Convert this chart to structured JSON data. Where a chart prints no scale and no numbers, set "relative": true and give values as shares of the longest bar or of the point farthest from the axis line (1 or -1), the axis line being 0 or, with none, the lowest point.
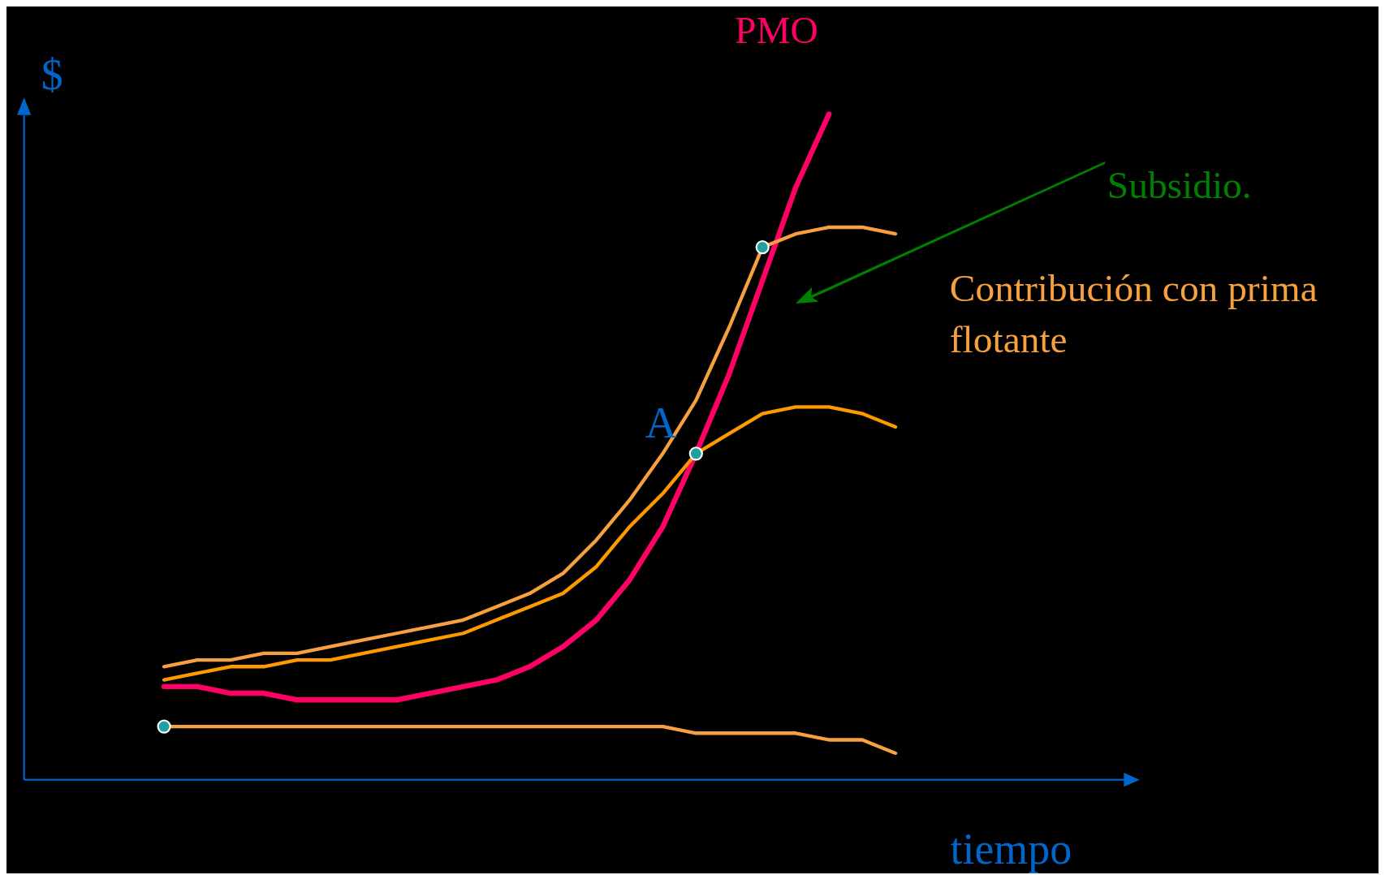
{
  "chart_data": {
    "type": "line",
    "relative": true,
    "xlabel": "tiempo",
    "ylabel": "$",
    "categories": [
      null,
      null,
      null,
      null,
      null,
      null,
      null,
      null,
      null,
      null,
      null,
      null,
      null,
      null,
      null,
      null,
      null,
      null,
      null,
      null,
      null,
      null,
      null
    ],
    "annotations": [
      "Subsidio.",
      "A"
    ],
    "series": [
      {
        "name": "PMO",
        "color": "#ff0066",
        "values": [
          0.14,
          0.14,
          0.13,
          0.13,
          0.12,
          0.12,
          0.12,
          0.12,
          0.13,
          0.14,
          0.15,
          0.17,
          0.2,
          0.24,
          0.3,
          0.38,
          0.49,
          0.61,
          0.75,
          0.89,
          1,
          null,
          null
        ]
      },
      {
        "name": "Contribución con prima flotante",
        "color": "#f7a040",
        "values": [
          0.17,
          0.18,
          0.18,
          0.19,
          0.19,
          0.2,
          0.21,
          0.22,
          0.23,
          0.24,
          0.26,
          0.28,
          0.31,
          0.36,
          0.42,
          0.49,
          0.57,
          0.68,
          0.8,
          0.82,
          0.83,
          0.83,
          0.82
        ]
      },
      {
        "color": "#ff9900",
        "values": [
          0.15,
          0.16,
          0.17,
          0.17,
          0.18,
          0.18,
          0.19,
          0.2,
          0.21,
          0.22,
          0.24,
          0.26,
          0.28,
          0.32,
          0.38,
          0.43,
          0.49,
          0.52,
          0.55,
          0.56,
          0.56,
          0.55,
          0.53
        ]
      },
      {
        "color": "#f7a040",
        "values": [
          0.08,
          0.08,
          0.08,
          0.08,
          0.08,
          0.08,
          0.08,
          0.08,
          0.08,
          0.08,
          0.08,
          0.08,
          0.08,
          0.08,
          0.08,
          0.08,
          0.07,
          0.07,
          0.07,
          0.07,
          0.06,
          0.06,
          0.04
        ]
      }
    ]
  }
}
